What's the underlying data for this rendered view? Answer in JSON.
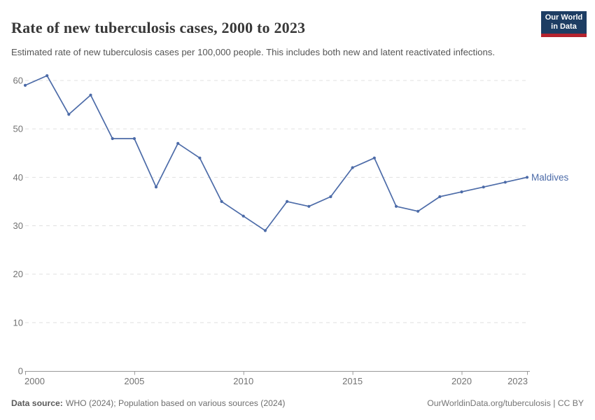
{
  "logo": {
    "line1": "Our World",
    "line2": "in Data"
  },
  "chart_data": {
    "type": "line",
    "title": "Rate of new tuberculosis cases, 2000 to 2023",
    "subtitle": "Estimated rate of new tuberculosis cases per 100,000 people. This includes both new and latent reactivated infections.",
    "x": [
      2000,
      2001,
      2002,
      2003,
      2004,
      2005,
      2006,
      2007,
      2008,
      2009,
      2010,
      2011,
      2012,
      2013,
      2014,
      2015,
      2016,
      2017,
      2018,
      2019,
      2020,
      2021,
      2022,
      2023
    ],
    "series": [
      {
        "name": "Maldives",
        "color": "#4c6ba8",
        "values": [
          59,
          61,
          53,
          57,
          48,
          48,
          38,
          47,
          44,
          35,
          32,
          29,
          35,
          34,
          36,
          42,
          44,
          34,
          33,
          36,
          37,
          38,
          39,
          40
        ]
      }
    ],
    "xlabel": "",
    "ylabel": "",
    "xticks": [
      2000,
      2005,
      2010,
      2015,
      2020,
      2023
    ],
    "yticks": [
      0,
      10,
      20,
      30,
      40,
      50,
      60
    ],
    "xlim": [
      2000,
      2023
    ],
    "ylim": [
      0,
      62
    ],
    "grid": "horizontal-dashed",
    "legend": "line-end-label"
  },
  "footer": {
    "source_label": "Data source:",
    "source_text": "WHO (2024); Population based on various sources (2024)",
    "credit": "OurWorldinData.org/tuberculosis | CC BY"
  },
  "colors": {
    "accent": "#4c6ba8",
    "logo_bg": "#1d3d63",
    "logo_stripe": "#b5232e",
    "grid": "#e0e0e0",
    "axis": "#999999",
    "tick_text": "#737373"
  }
}
